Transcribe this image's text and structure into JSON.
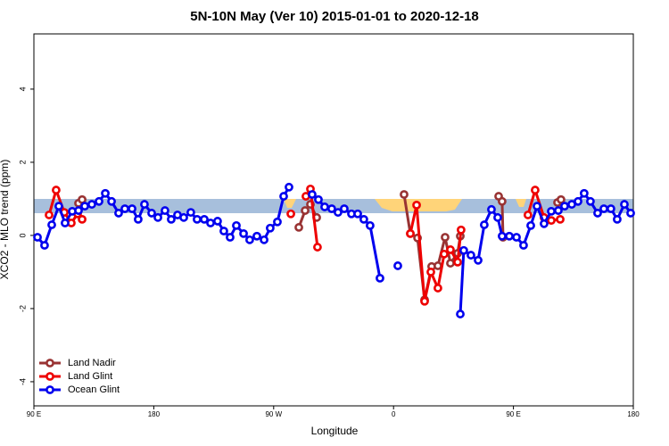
{
  "chart_data": {
    "type": "line",
    "title": "5N-10N May (Ver 10)   2015-01-01 to 2020-12-18",
    "x_label": "Longitude",
    "y_label": "XCO2 - MLO trend (ppm)",
    "xlim": [
      90,
      540
    ],
    "xticks": [
      {
        "value": 90,
        "label": "90 E"
      },
      180,
      {
        "value": 270,
        "label": "90 W"
      },
      {
        "value": 360,
        "label": "0"
      },
      {
        "value": 450,
        "label": "90 E"
      },
      {
        "value": 540,
        "label": "180"
      }
    ],
    "ylim": [
      -4.66,
      5.51
    ],
    "yticks": [
      -4,
      -2,
      0,
      2,
      4
    ],
    "legend": "bottom-left",
    "series": [
      {
        "name": "Land Nadir",
        "color": "#993333",
        "x": [
          123.5,
          126.2,
          null,
          288.9,
          293.6,
          297.6,
          302.3,
          null,
          367.9,
          372.6,
          378.0,
          383.3,
          388.6,
          393.3,
          398.7,
          402.7,
          408.1,
          410.1,
          null,
          438.9,
          441.5,
          442.2,
          null,
          483.1,
          485.7
        ],
        "values": [
          0.88,
          0.98,
          null,
          0.22,
          0.68,
          0.85,
          0.49,
          null,
          1.12,
          0.05,
          -0.07,
          -1.76,
          -0.85,
          -0.83,
          -0.05,
          -0.76,
          -0.49,
          -0.02,
          null,
          1.07,
          0.93,
          -0.05,
          null,
          0.9,
          0.98
        ]
      },
      {
        "name": "Land Glint",
        "color": "#ee0000",
        "x": [
          101.4,
          106.7,
          112.8,
          118.1,
          122.8,
          126.2,
          null,
          282.9,
          null,
          294.2,
          297.6,
          302.9,
          null,
          372.6,
          377.3,
          383.3,
          388.0,
          393.3,
          398.0,
          402.7,
          408.1,
          410.7,
          null,
          460.9,
          466.3,
          473.0,
          478.4,
          485.1
        ],
        "values": [
          0.56,
          1.24,
          0.63,
          0.34,
          0.59,
          0.44,
          null,
          0.59,
          null,
          1.07,
          1.27,
          -0.32,
          null,
          0.05,
          0.83,
          -1.8,
          -1.0,
          -1.44,
          -0.51,
          -0.39,
          -0.73,
          0.15,
          null,
          0.56,
          1.24,
          0.49,
          0.41,
          0.44
        ]
      },
      {
        "name": "Ocean Glint",
        "color": "#0000ee",
        "x": [
          92.7,
          98.0,
          103.4,
          108.7,
          113.4,
          118.8,
          123.5,
          128.2,
          133.5,
          138.9,
          143.6,
          148.3,
          153.6,
          158.3,
          163.7,
          168.3,
          173.0,
          178.4,
          183.1,
          188.4,
          193.1,
          197.8,
          202.5,
          207.8,
          212.5,
          217.9,
          222.6,
          227.9,
          232.6,
          237.3,
          242.0,
          247.4,
          252.0,
          257.4,
          262.8,
          267.4,
          272.8,
          277.5,
          281.5,
          null,
          298.9,
          303.6,
          308.3,
          313.6,
          318.3,
          323.0,
          328.4,
          333.1,
          337.7,
          342.4,
          349.8,
          null,
          363.2,
          null,
          410.1,
          412.7,
          418.1,
          423.5,
          428.1,
          433.5,
          438.2,
          441.5,
          446.9,
          452.3,
          457.6,
          463.0,
          467.7,
          473.0,
          478.4,
          483.7,
          488.4,
          493.8,
          498.5,
          503.1,
          507.8,
          513.2,
          517.9,
          523.2,
          527.9,
          533.3,
          538.0
        ],
        "values": [
          -0.05,
          -0.27,
          0.29,
          0.8,
          0.34,
          0.66,
          0.68,
          0.8,
          0.85,
          0.93,
          1.15,
          0.93,
          0.61,
          0.73,
          0.73,
          0.44,
          0.85,
          0.61,
          0.49,
          0.68,
          0.44,
          0.56,
          0.49,
          0.63,
          0.44,
          0.44,
          0.34,
          0.39,
          0.12,
          -0.05,
          0.27,
          0.05,
          -0.12,
          -0.02,
          -0.12,
          0.2,
          0.37,
          1.07,
          1.32,
          null,
          1.12,
          0.98,
          0.78,
          0.73,
          0.63,
          0.73,
          0.59,
          0.59,
          0.44,
          0.27,
          -1.17,
          null,
          -0.83,
          null,
          -2.15,
          -0.41,
          -0.54,
          -0.68,
          0.29,
          0.71,
          0.49,
          -0.02,
          -0.02,
          -0.05,
          -0.27,
          0.27,
          0.8,
          0.32,
          0.66,
          0.68,
          0.8,
          0.85,
          0.93,
          1.15,
          0.93,
          0.61,
          0.73,
          0.73,
          0.44,
          0.85,
          0.61
        ]
      }
    ]
  }
}
